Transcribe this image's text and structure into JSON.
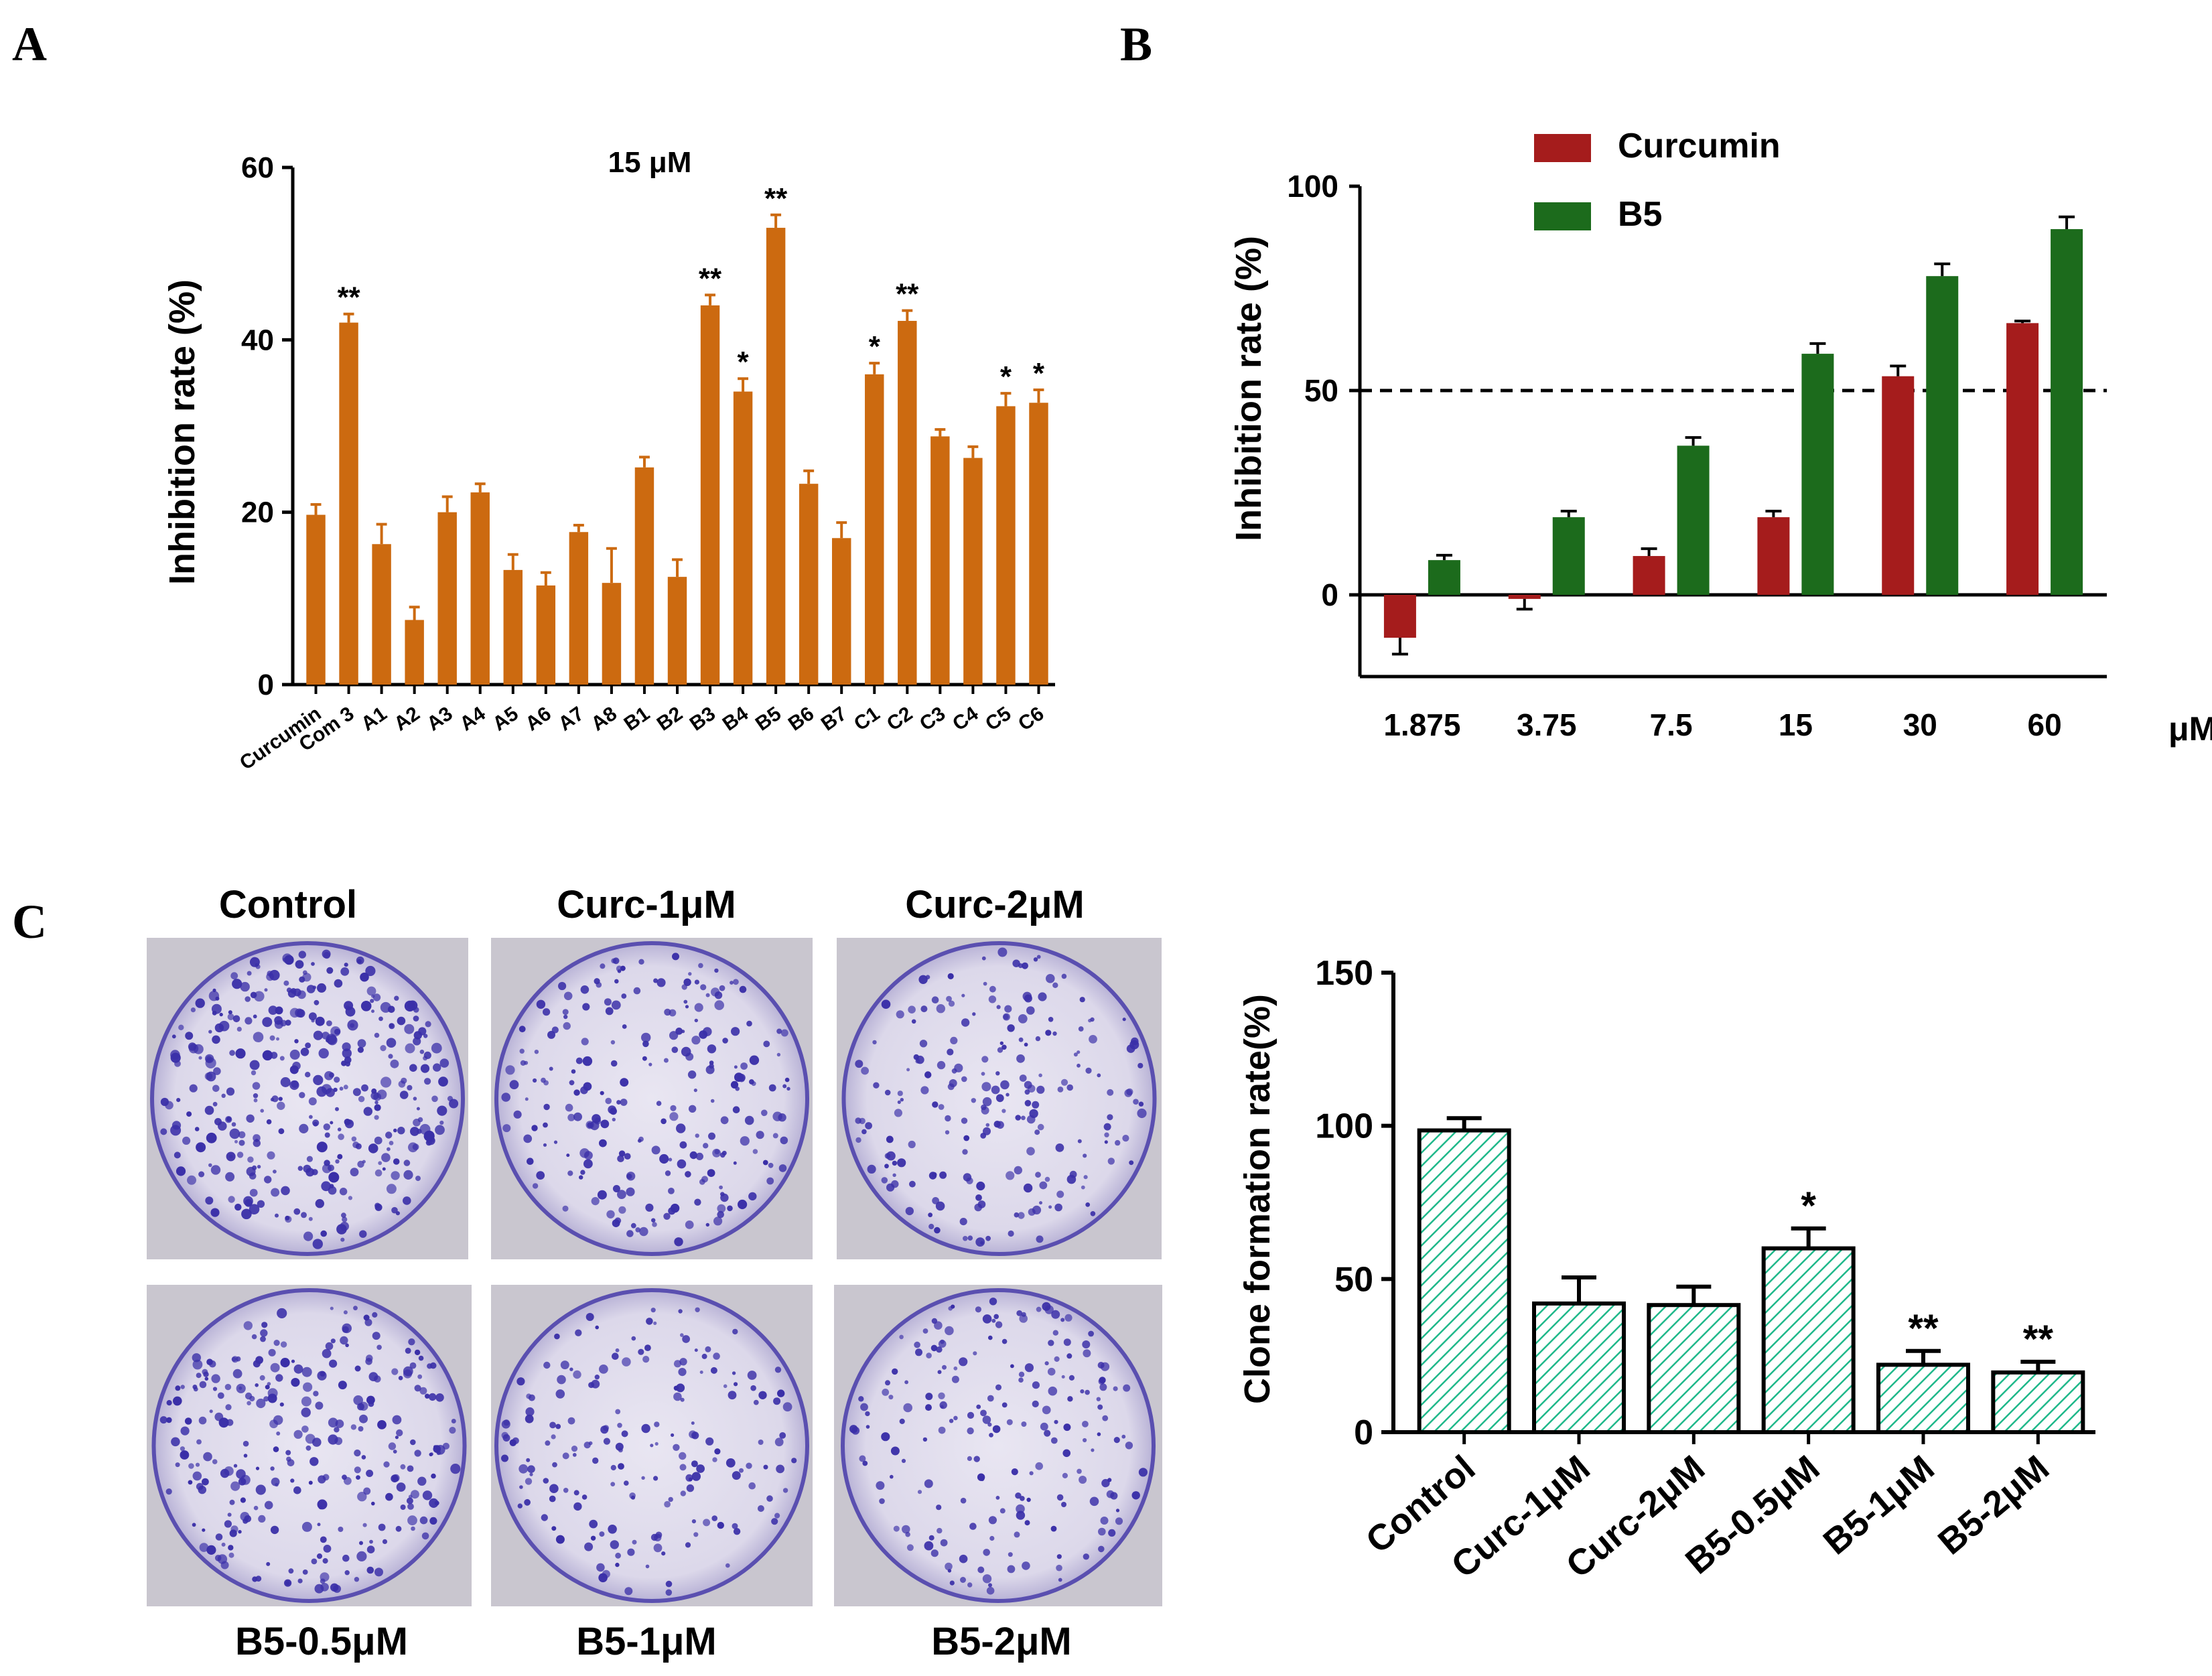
{
  "panels": {
    "a": "A",
    "b": "B",
    "c": "C"
  },
  "colors": {
    "orange": "#CC6A10",
    "curcumin_red": "#A51C1C",
    "b5_green": "#1C6B1C",
    "hatch_green": "#1FB88A",
    "plate_stain": "#3A2FA8"
  },
  "chart_data": [
    {
      "id": "A",
      "type": "bar",
      "title": "15 μM",
      "xlabel": "",
      "ylabel": "Inhibition rate (%)",
      "ylim": [
        0,
        60
      ],
      "yticks": [
        "0",
        "20",
        "40",
        "60"
      ],
      "categories": [
        "Curcumin",
        "Com 3",
        "A1",
        "A2",
        "A3",
        "A4",
        "A5",
        "A6",
        "A7",
        "A8",
        "B1",
        "B2",
        "B3",
        "B4",
        "B5",
        "B6",
        "B7",
        "C1",
        "C2",
        "C3",
        "C4",
        "C5",
        "C6"
      ],
      "values": [
        19.7,
        42.0,
        16.3,
        7.5,
        20.0,
        22.3,
        13.3,
        11.5,
        17.7,
        11.8,
        25.2,
        12.5,
        44.0,
        34.0,
        53.0,
        23.3,
        17.0,
        36.0,
        42.2,
        28.8,
        26.3,
        32.3,
        32.7
      ],
      "errors": [
        1.2,
        1.0,
        2.3,
        1.5,
        1.8,
        1.0,
        1.8,
        1.5,
        0.8,
        4.0,
        1.2,
        2.0,
        1.2,
        1.5,
        1.5,
        1.5,
        1.8,
        1.3,
        1.2,
        0.8,
        1.3,
        1.5,
        1.5
      ],
      "significance": [
        "",
        "**",
        "",
        "",
        "",
        "",
        "",
        "",
        "",
        "",
        "",
        "",
        "**",
        "*",
        "**",
        "",
        "",
        "*",
        "**",
        "",
        "",
        "*",
        "*"
      ]
    },
    {
      "id": "B",
      "type": "bar",
      "title": "",
      "xlabel": "μM",
      "ylabel": "Inhibition rate (%)",
      "ylim": [
        -20,
        100
      ],
      "yticks": [
        "0",
        "50",
        "100"
      ],
      "reference_line": 50,
      "categories": [
        "1.875",
        "3.75",
        "7.5",
        "15",
        "30",
        "60"
      ],
      "series": [
        {
          "name": "Curcumin",
          "values": [
            -10.5,
            -1.0,
            9.5,
            19.0,
            53.5,
            66.5
          ],
          "errors": [
            4.0,
            2.5,
            1.8,
            1.5,
            2.5,
            0.5
          ]
        },
        {
          "name": "B5",
          "values": [
            8.5,
            19.0,
            36.5,
            59.0,
            78.0,
            89.5
          ],
          "errors": [
            1.2,
            1.5,
            2.0,
            2.5,
            3.0,
            3.0
          ]
        }
      ],
      "legend": "top-left"
    },
    {
      "id": "C",
      "type": "bar",
      "title": "",
      "xlabel": "",
      "ylabel": "Clone formation rate(%)",
      "ylim": [
        0,
        150
      ],
      "yticks": [
        "0",
        "50",
        "100",
        "150"
      ],
      "categories": [
        "Control",
        "Curc-1μM",
        "Curc-2μM",
        "B5-0.5μM",
        "B5-1μM",
        "B5-2μM"
      ],
      "values": [
        98.5,
        42.0,
        41.5,
        60.0,
        22.0,
        19.5
      ],
      "errors": [
        4.0,
        8.5,
        6.0,
        6.5,
        4.5,
        3.5
      ],
      "significance": [
        "",
        "",
        "",
        "*",
        "**",
        "**"
      ]
    }
  ],
  "plates": {
    "top": [
      "Control",
      "Curc-1μM",
      "Curc-2μM"
    ],
    "bottom": [
      "B5-0.5μM",
      "B5-1μM",
      "B5-2μM"
    ]
  }
}
